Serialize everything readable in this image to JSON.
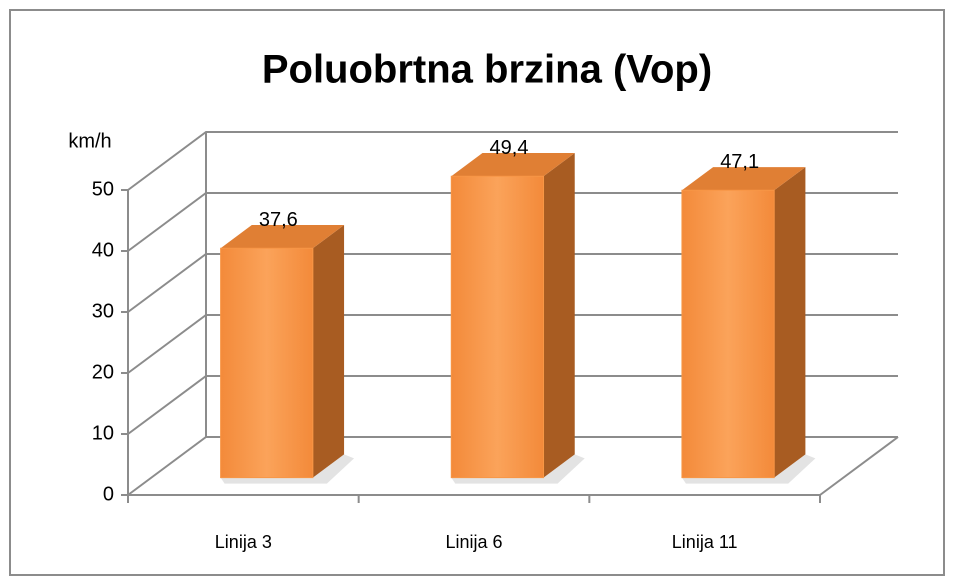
{
  "chart_data": {
    "type": "bar3d",
    "title": "Poluobrtna brzina (Vop)",
    "y_label": "km/h",
    "categories": [
      "Linija 3",
      "Linija 6",
      "Linija 11"
    ],
    "values": [
      37.6,
      49.4,
      47.1
    ],
    "value_labels": [
      "37,6",
      "49,4",
      "47,1"
    ],
    "color": "#f79646",
    "ylim": [
      0,
      50
    ],
    "yticks": [
      0,
      10,
      20,
      30,
      40,
      50
    ],
    "grid": true
  }
}
